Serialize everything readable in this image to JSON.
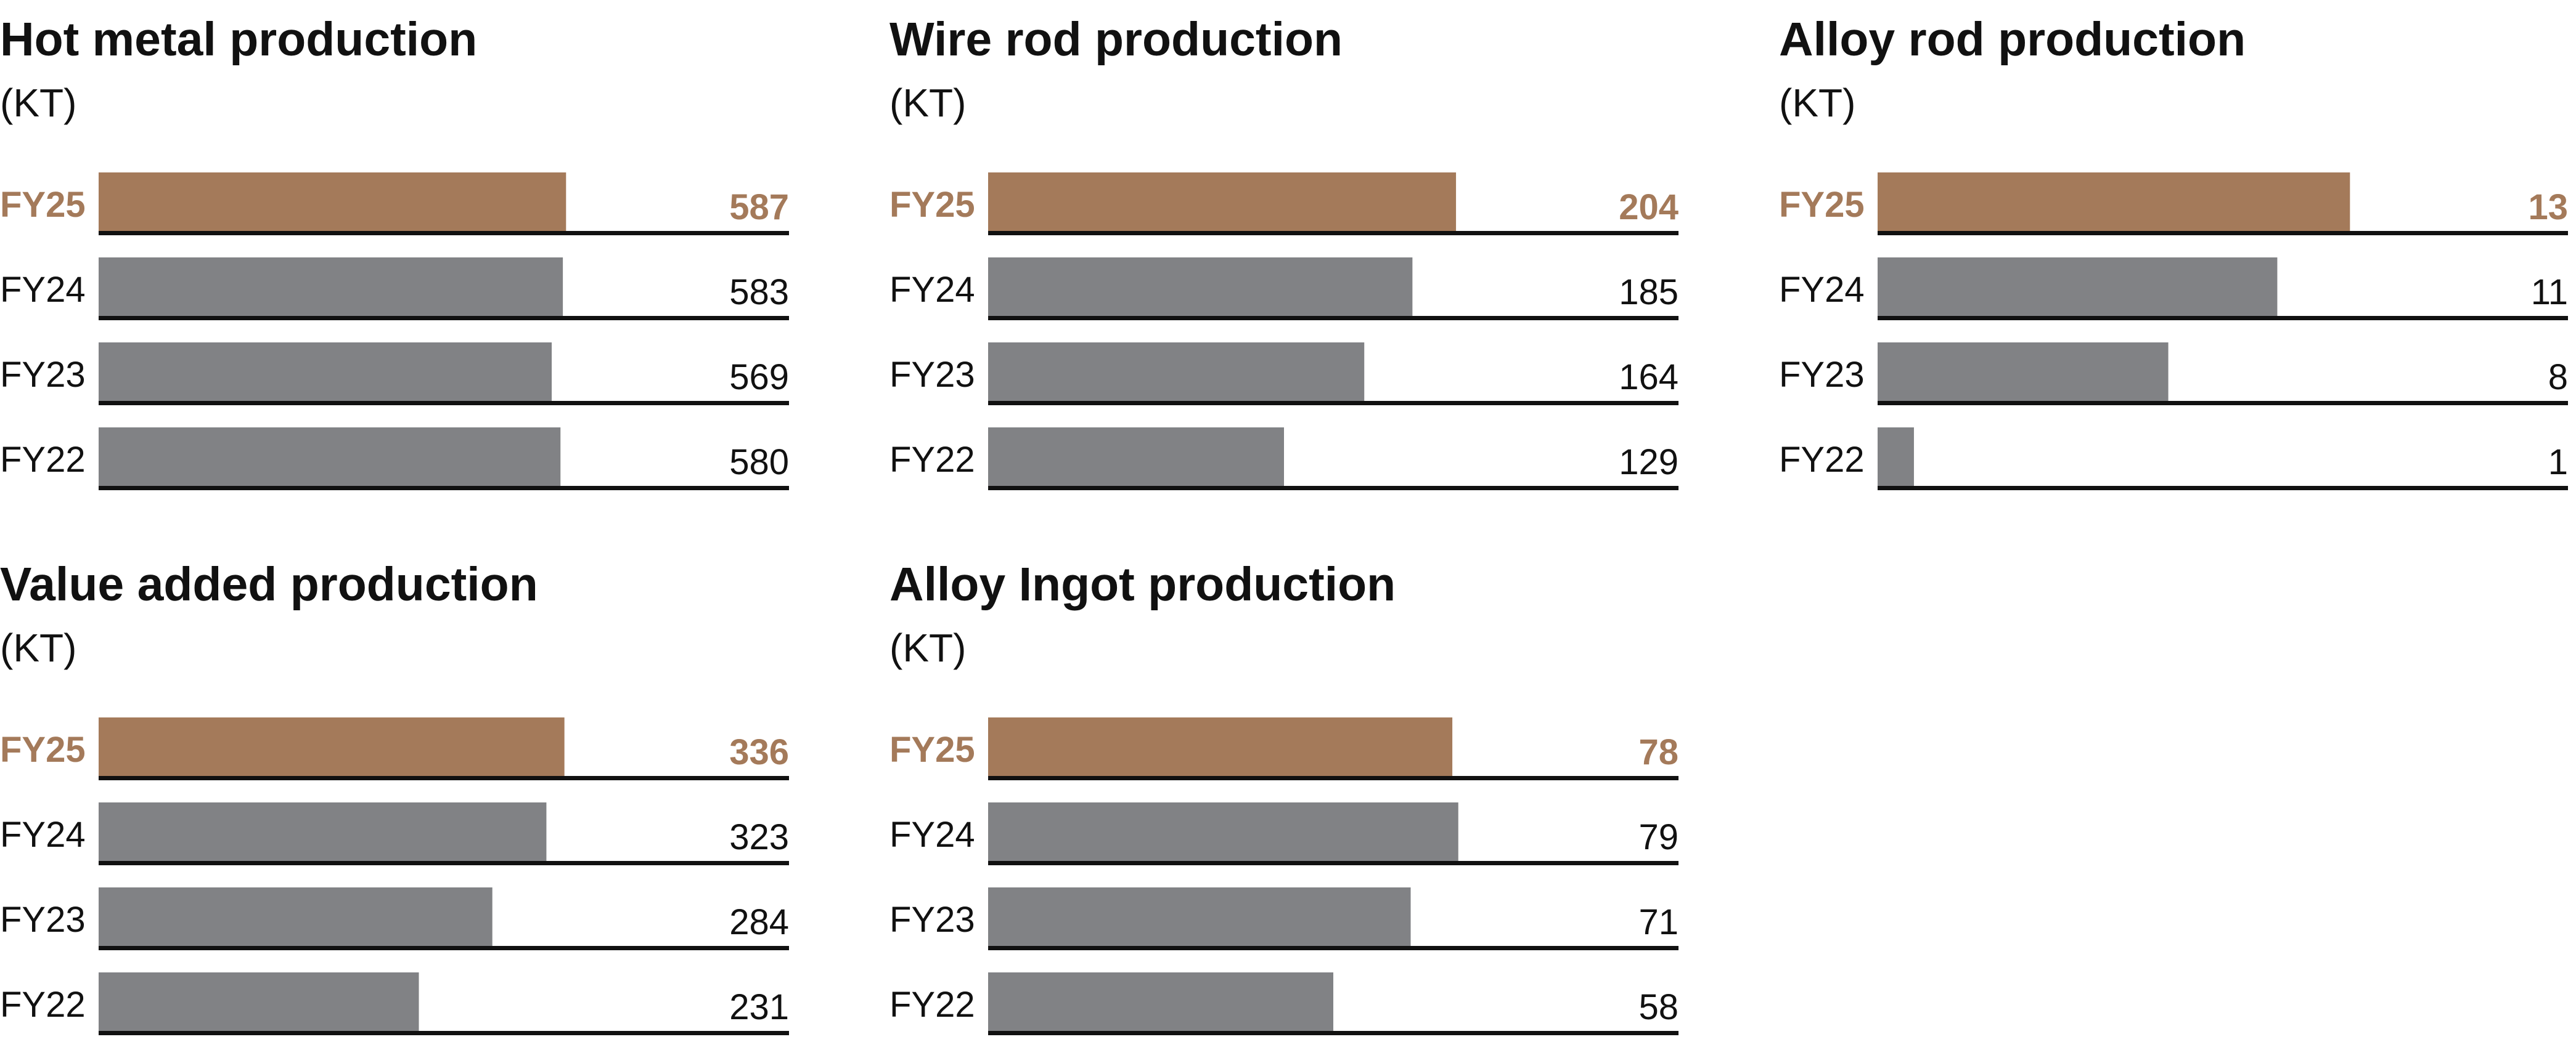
{
  "colors": {
    "highlight": "#a47a5a",
    "bar": "#818285",
    "baseline": "#111111",
    "text": "#111111"
  },
  "chart_data": [
    {
      "type": "bar",
      "title": "Hot metal production",
      "subtitle": "(KT)",
      "categories": [
        "FY25",
        "FY24",
        "FY23",
        "FY22"
      ],
      "values": [
        587,
        583,
        569,
        580
      ],
      "highlight": "FY25",
      "xlim": [
        0,
        867
      ]
    },
    {
      "type": "bar",
      "title": "Wire rod production",
      "subtitle": "(KT)",
      "categories": [
        "FY25",
        "FY24",
        "FY23",
        "FY22"
      ],
      "values": [
        204,
        185,
        164,
        129
      ],
      "highlight": "FY25",
      "xlim": [
        0,
        301
      ]
    },
    {
      "type": "bar",
      "title": "Alloy rod production",
      "subtitle": "(KT)",
      "categories": [
        "FY25",
        "FY24",
        "FY23",
        "FY22"
      ],
      "values": [
        13,
        11,
        8,
        1
      ],
      "highlight": "FY25",
      "xlim": [
        0,
        19
      ]
    },
    {
      "type": "bar",
      "title": "Value added production",
      "subtitle": "(KT)",
      "categories": [
        "FY25",
        "FY24",
        "FY23",
        "FY22"
      ],
      "values": [
        336,
        323,
        284,
        231
      ],
      "highlight": "FY25",
      "xlim": [
        0,
        498
      ]
    },
    {
      "type": "bar",
      "title": "Alloy Ingot production",
      "subtitle": "(KT)",
      "categories": [
        "FY25",
        "FY24",
        "FY23",
        "FY22"
      ],
      "values": [
        78,
        79,
        71,
        58
      ],
      "highlight": "FY25",
      "xlim": [
        0,
        116
      ]
    }
  ]
}
